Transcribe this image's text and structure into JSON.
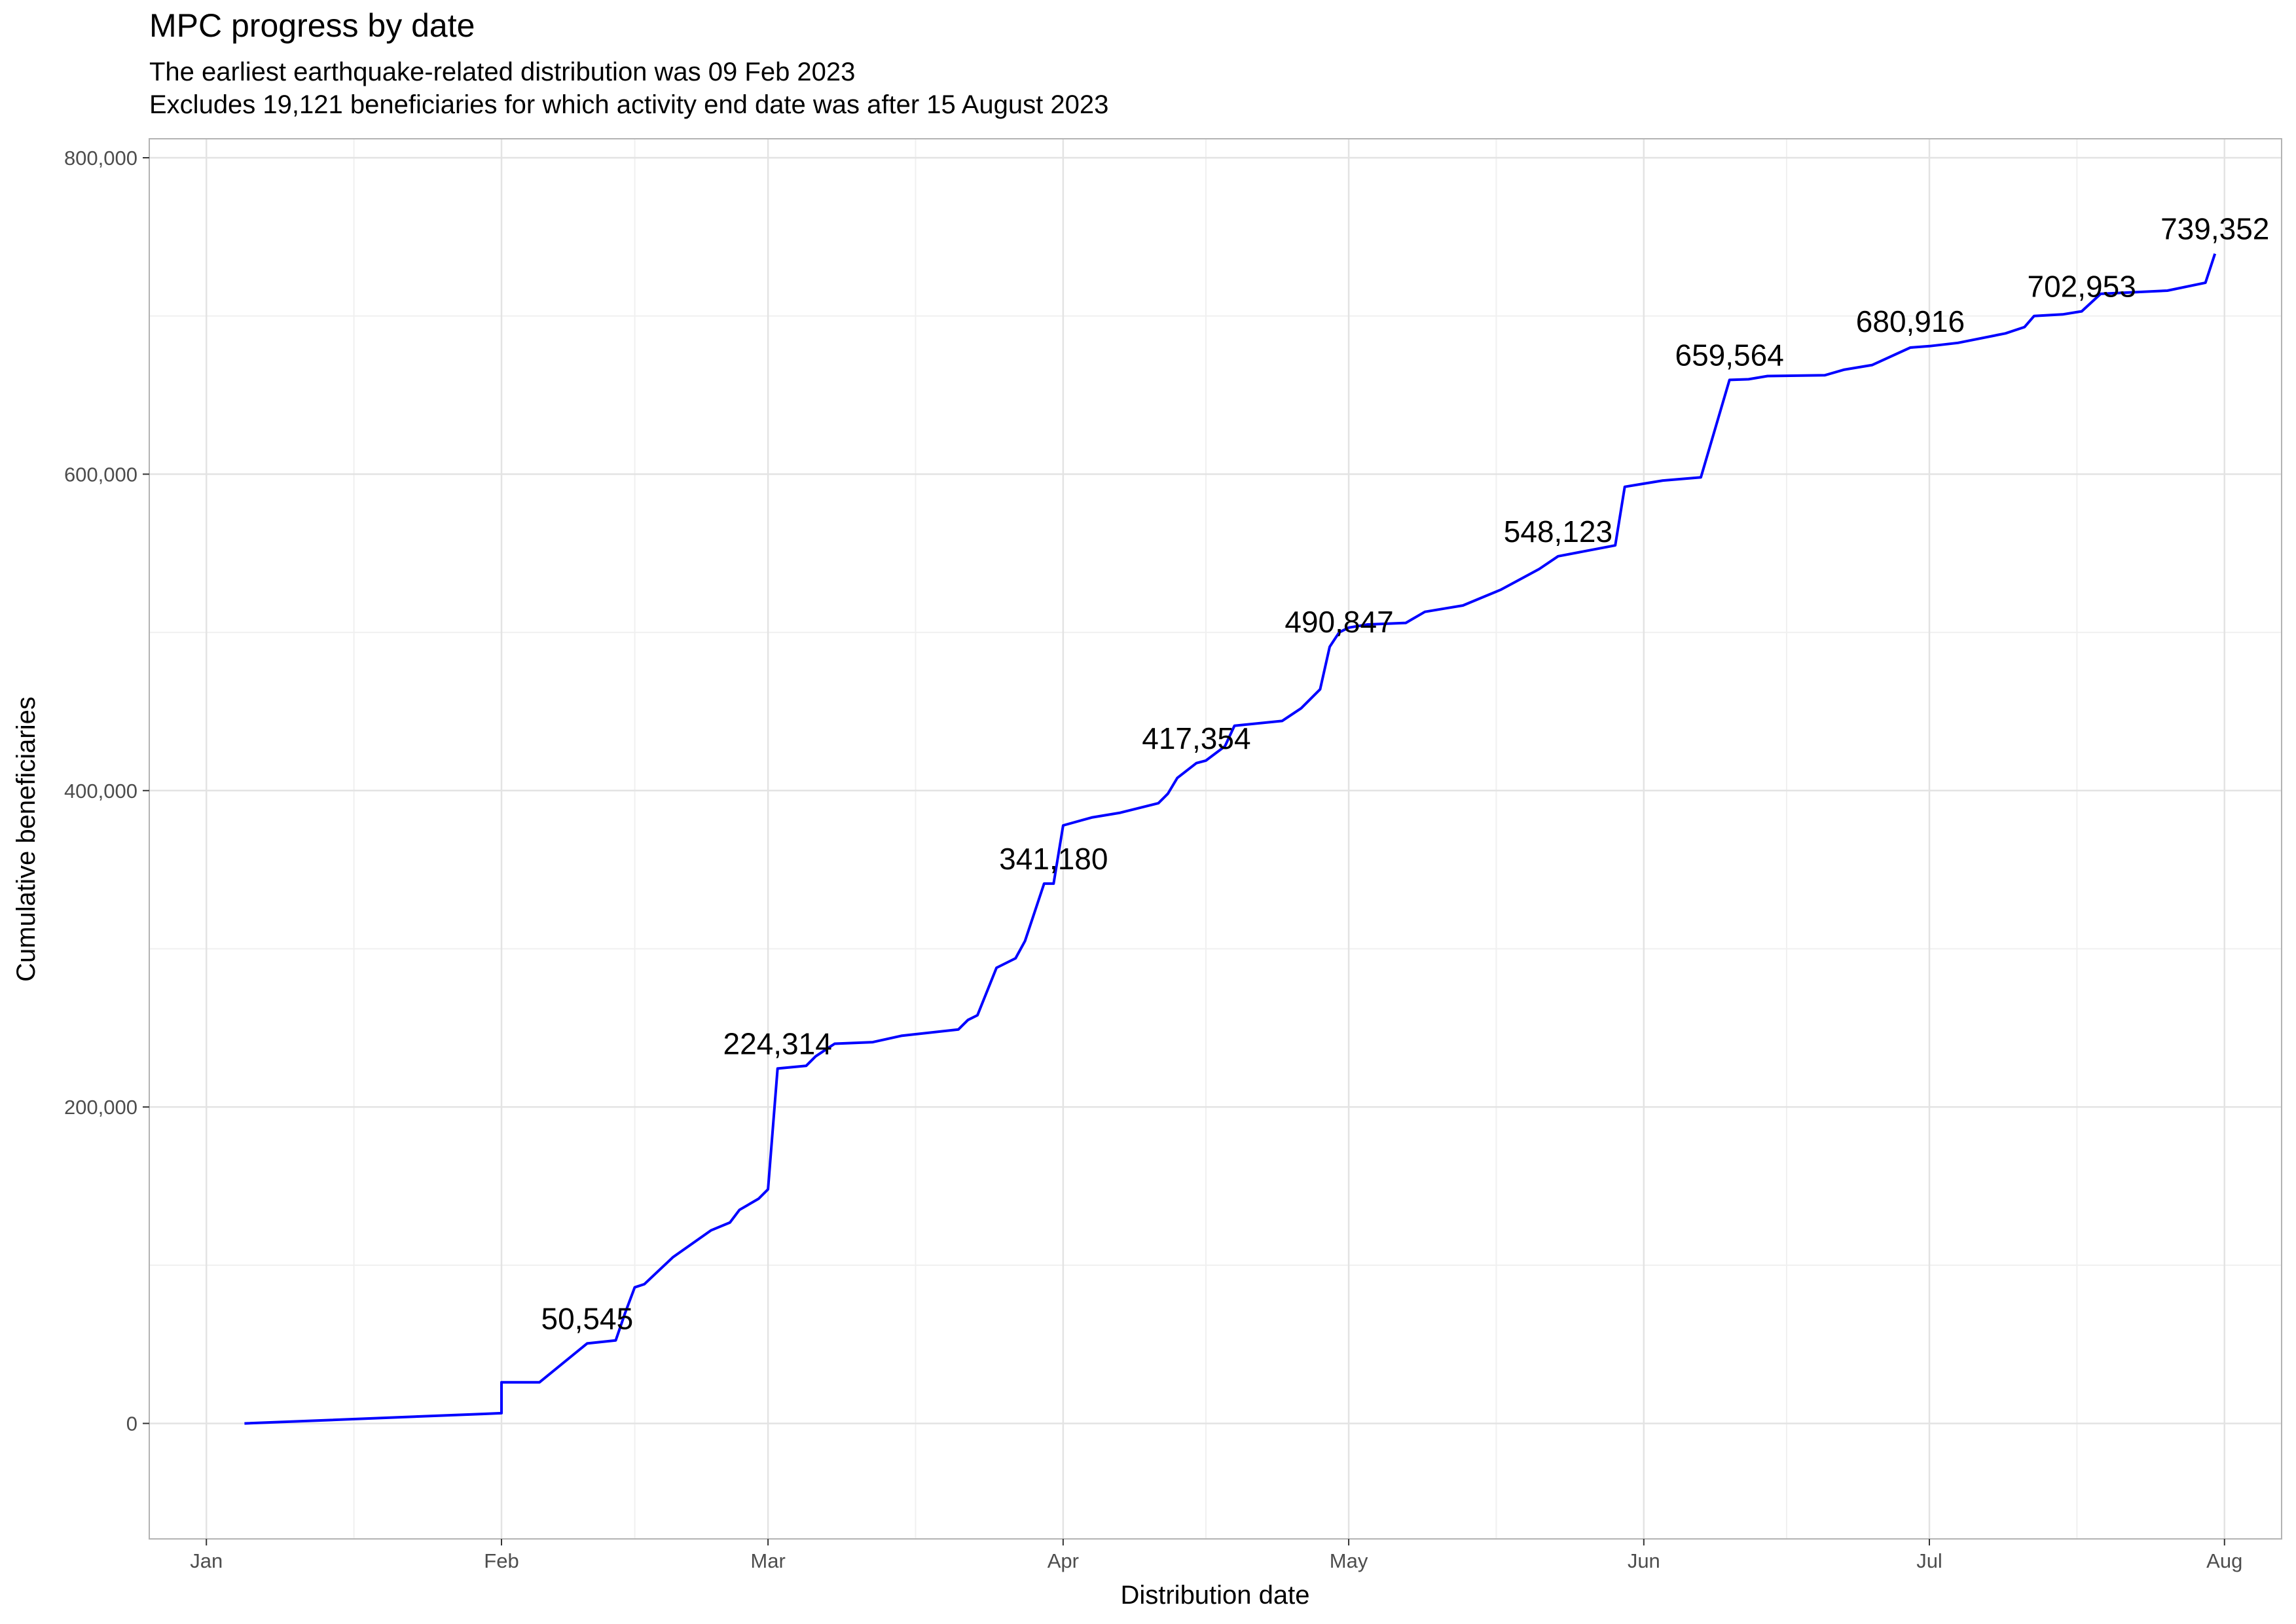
{
  "chart_data": {
    "type": "line",
    "title": "MPC progress by date",
    "subtitle": [
      "The earliest earthquake-related distribution was 09 Feb 2023",
      "Excludes 19,121 beneficiaries for which activity end date was after 15 August 2023"
    ],
    "xlabel": "Distribution date",
    "ylabel": "Cumulative beneficiaries",
    "x_ticks": [
      "Jan",
      "Feb",
      "Mar",
      "Apr",
      "May",
      "Jun",
      "Jul",
      "Aug"
    ],
    "y_ticks": [
      "0",
      "200,000",
      "400,000",
      "600,000",
      "800,000"
    ],
    "ylim": [
      -73000,
      812000
    ],
    "xlim": [
      "2022-12-26",
      "2023-08-07"
    ],
    "grid": true,
    "line_color": "#0000ff",
    "series": [
      {
        "points": [
          [
            "2023-01-05",
            0
          ],
          [
            "2023-01-30",
            6000
          ],
          [
            "2023-02-01",
            6500
          ],
          [
            "2023-02-01",
            26000
          ],
          [
            "2023-02-05",
            26000
          ],
          [
            "2023-02-10",
            50545
          ],
          [
            "2023-02-13",
            52500
          ],
          [
            "2023-02-14",
            70000
          ],
          [
            "2023-02-15",
            86000
          ],
          [
            "2023-02-16",
            88000
          ],
          [
            "2023-02-19",
            105000
          ],
          [
            "2023-02-23",
            122000
          ],
          [
            "2023-02-25",
            127000
          ],
          [
            "2023-02-26",
            135000
          ],
          [
            "2023-02-28",
            142000
          ],
          [
            "2023-03-01",
            148000
          ],
          [
            "2023-03-02",
            224314
          ],
          [
            "2023-03-05",
            226000
          ],
          [
            "2023-03-06",
            232000
          ],
          [
            "2023-03-08",
            240000
          ],
          [
            "2023-03-12",
            241000
          ],
          [
            "2023-03-15",
            245000
          ],
          [
            "2023-03-21",
            249000
          ],
          [
            "2023-03-22",
            255000
          ],
          [
            "2023-03-23",
            258000
          ],
          [
            "2023-03-25",
            288000
          ],
          [
            "2023-03-27",
            294000
          ],
          [
            "2023-03-28",
            305000
          ],
          [
            "2023-03-30",
            341180
          ],
          [
            "2023-03-31",
            341180
          ],
          [
            "2023-04-01",
            378000
          ],
          [
            "2023-04-04",
            383000
          ],
          [
            "2023-04-07",
            386000
          ],
          [
            "2023-04-11",
            392000
          ],
          [
            "2023-04-12",
            398000
          ],
          [
            "2023-04-13",
            408000
          ],
          [
            "2023-04-15",
            417354
          ],
          [
            "2023-04-16",
            419000
          ],
          [
            "2023-04-18",
            428000
          ],
          [
            "2023-04-19",
            441000
          ],
          [
            "2023-04-24",
            444000
          ],
          [
            "2023-04-26",
            452000
          ],
          [
            "2023-04-28",
            464000
          ],
          [
            "2023-04-29",
            490847
          ],
          [
            "2023-04-30",
            500000
          ],
          [
            "2023-05-01",
            503000
          ],
          [
            "2023-05-03",
            505000
          ],
          [
            "2023-05-07",
            506000
          ],
          [
            "2023-05-09",
            513000
          ],
          [
            "2023-05-11",
            515000
          ],
          [
            "2023-05-13",
            517000
          ],
          [
            "2023-05-15",
            522000
          ],
          [
            "2023-05-17",
            527000
          ],
          [
            "2023-05-21",
            540000
          ],
          [
            "2023-05-23",
            548123
          ],
          [
            "2023-05-29",
            555000
          ],
          [
            "2023-05-30",
            592000
          ],
          [
            "2023-06-01",
            594000
          ],
          [
            "2023-06-03",
            596000
          ],
          [
            "2023-06-07",
            598000
          ],
          [
            "2023-06-10",
            659564
          ],
          [
            "2023-06-12",
            660000
          ],
          [
            "2023-06-14",
            662000
          ],
          [
            "2023-06-20",
            662500
          ],
          [
            "2023-06-22",
            666000
          ],
          [
            "2023-06-25",
            669000
          ],
          [
            "2023-06-29",
            680000
          ],
          [
            "2023-07-01",
            680916
          ],
          [
            "2023-07-04",
            683000
          ],
          [
            "2023-07-09",
            689000
          ],
          [
            "2023-07-11",
            693000
          ],
          [
            "2023-07-12",
            700000
          ],
          [
            "2023-07-15",
            701000
          ],
          [
            "2023-07-17",
            702953
          ],
          [
            "2023-07-19",
            714000
          ],
          [
            "2023-07-26",
            716000
          ],
          [
            "2023-07-30",
            721000
          ],
          [
            "2023-07-31",
            739352
          ]
        ]
      }
    ],
    "labels": [
      {
        "x": "2023-02-10",
        "y": 50545,
        "text": "50,545"
      },
      {
        "x": "2023-03-02",
        "y": 224314,
        "text": "224,314"
      },
      {
        "x": "2023-03-31",
        "y": 341180,
        "text": "341,180"
      },
      {
        "x": "2023-04-15",
        "y": 417354,
        "text": "417,354"
      },
      {
        "x": "2023-04-30",
        "y": 490847,
        "text": "490,847"
      },
      {
        "x": "2023-05-23",
        "y": 548123,
        "text": "548,123"
      },
      {
        "x": "2023-06-10",
        "y": 659564,
        "text": "659,564"
      },
      {
        "x": "2023-06-29",
        "y": 680916,
        "text": "680,916"
      },
      {
        "x": "2023-07-17",
        "y": 702953,
        "text": "702,953"
      },
      {
        "x": "2023-07-31",
        "y": 739352,
        "text": "739,352"
      }
    ]
  }
}
